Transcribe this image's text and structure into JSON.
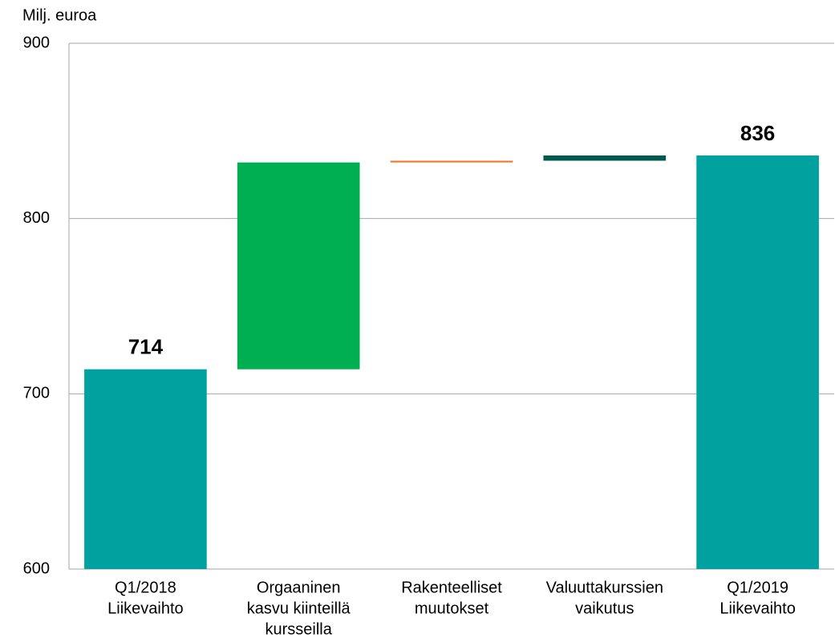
{
  "chart_data": {
    "type": "waterfall",
    "y_label": "Milj. euroa",
    "categories": [
      [
        "Q1/2018",
        "Liikevaihto"
      ],
      [
        "Orgaaninen",
        "kasvu kiinteillä",
        "kursseilla"
      ],
      [
        "Rakenteelliset",
        "muutokset"
      ],
      [
        "Valuuttakurssien",
        "vaikutus"
      ],
      [
        "Q1/2019",
        "Liikevaihto"
      ]
    ],
    "values": [
      714,
      118,
      1,
      3,
      836
    ],
    "totals": [
      true,
      false,
      false,
      false,
      true
    ],
    "colors": [
      "#00a19e",
      "#00b050",
      "#ed7d31",
      "#005a4e",
      "#00a19e"
    ],
    "ylim": [
      600,
      900
    ],
    "yticks": [
      600,
      700,
      800,
      900
    ],
    "grid": true
  }
}
